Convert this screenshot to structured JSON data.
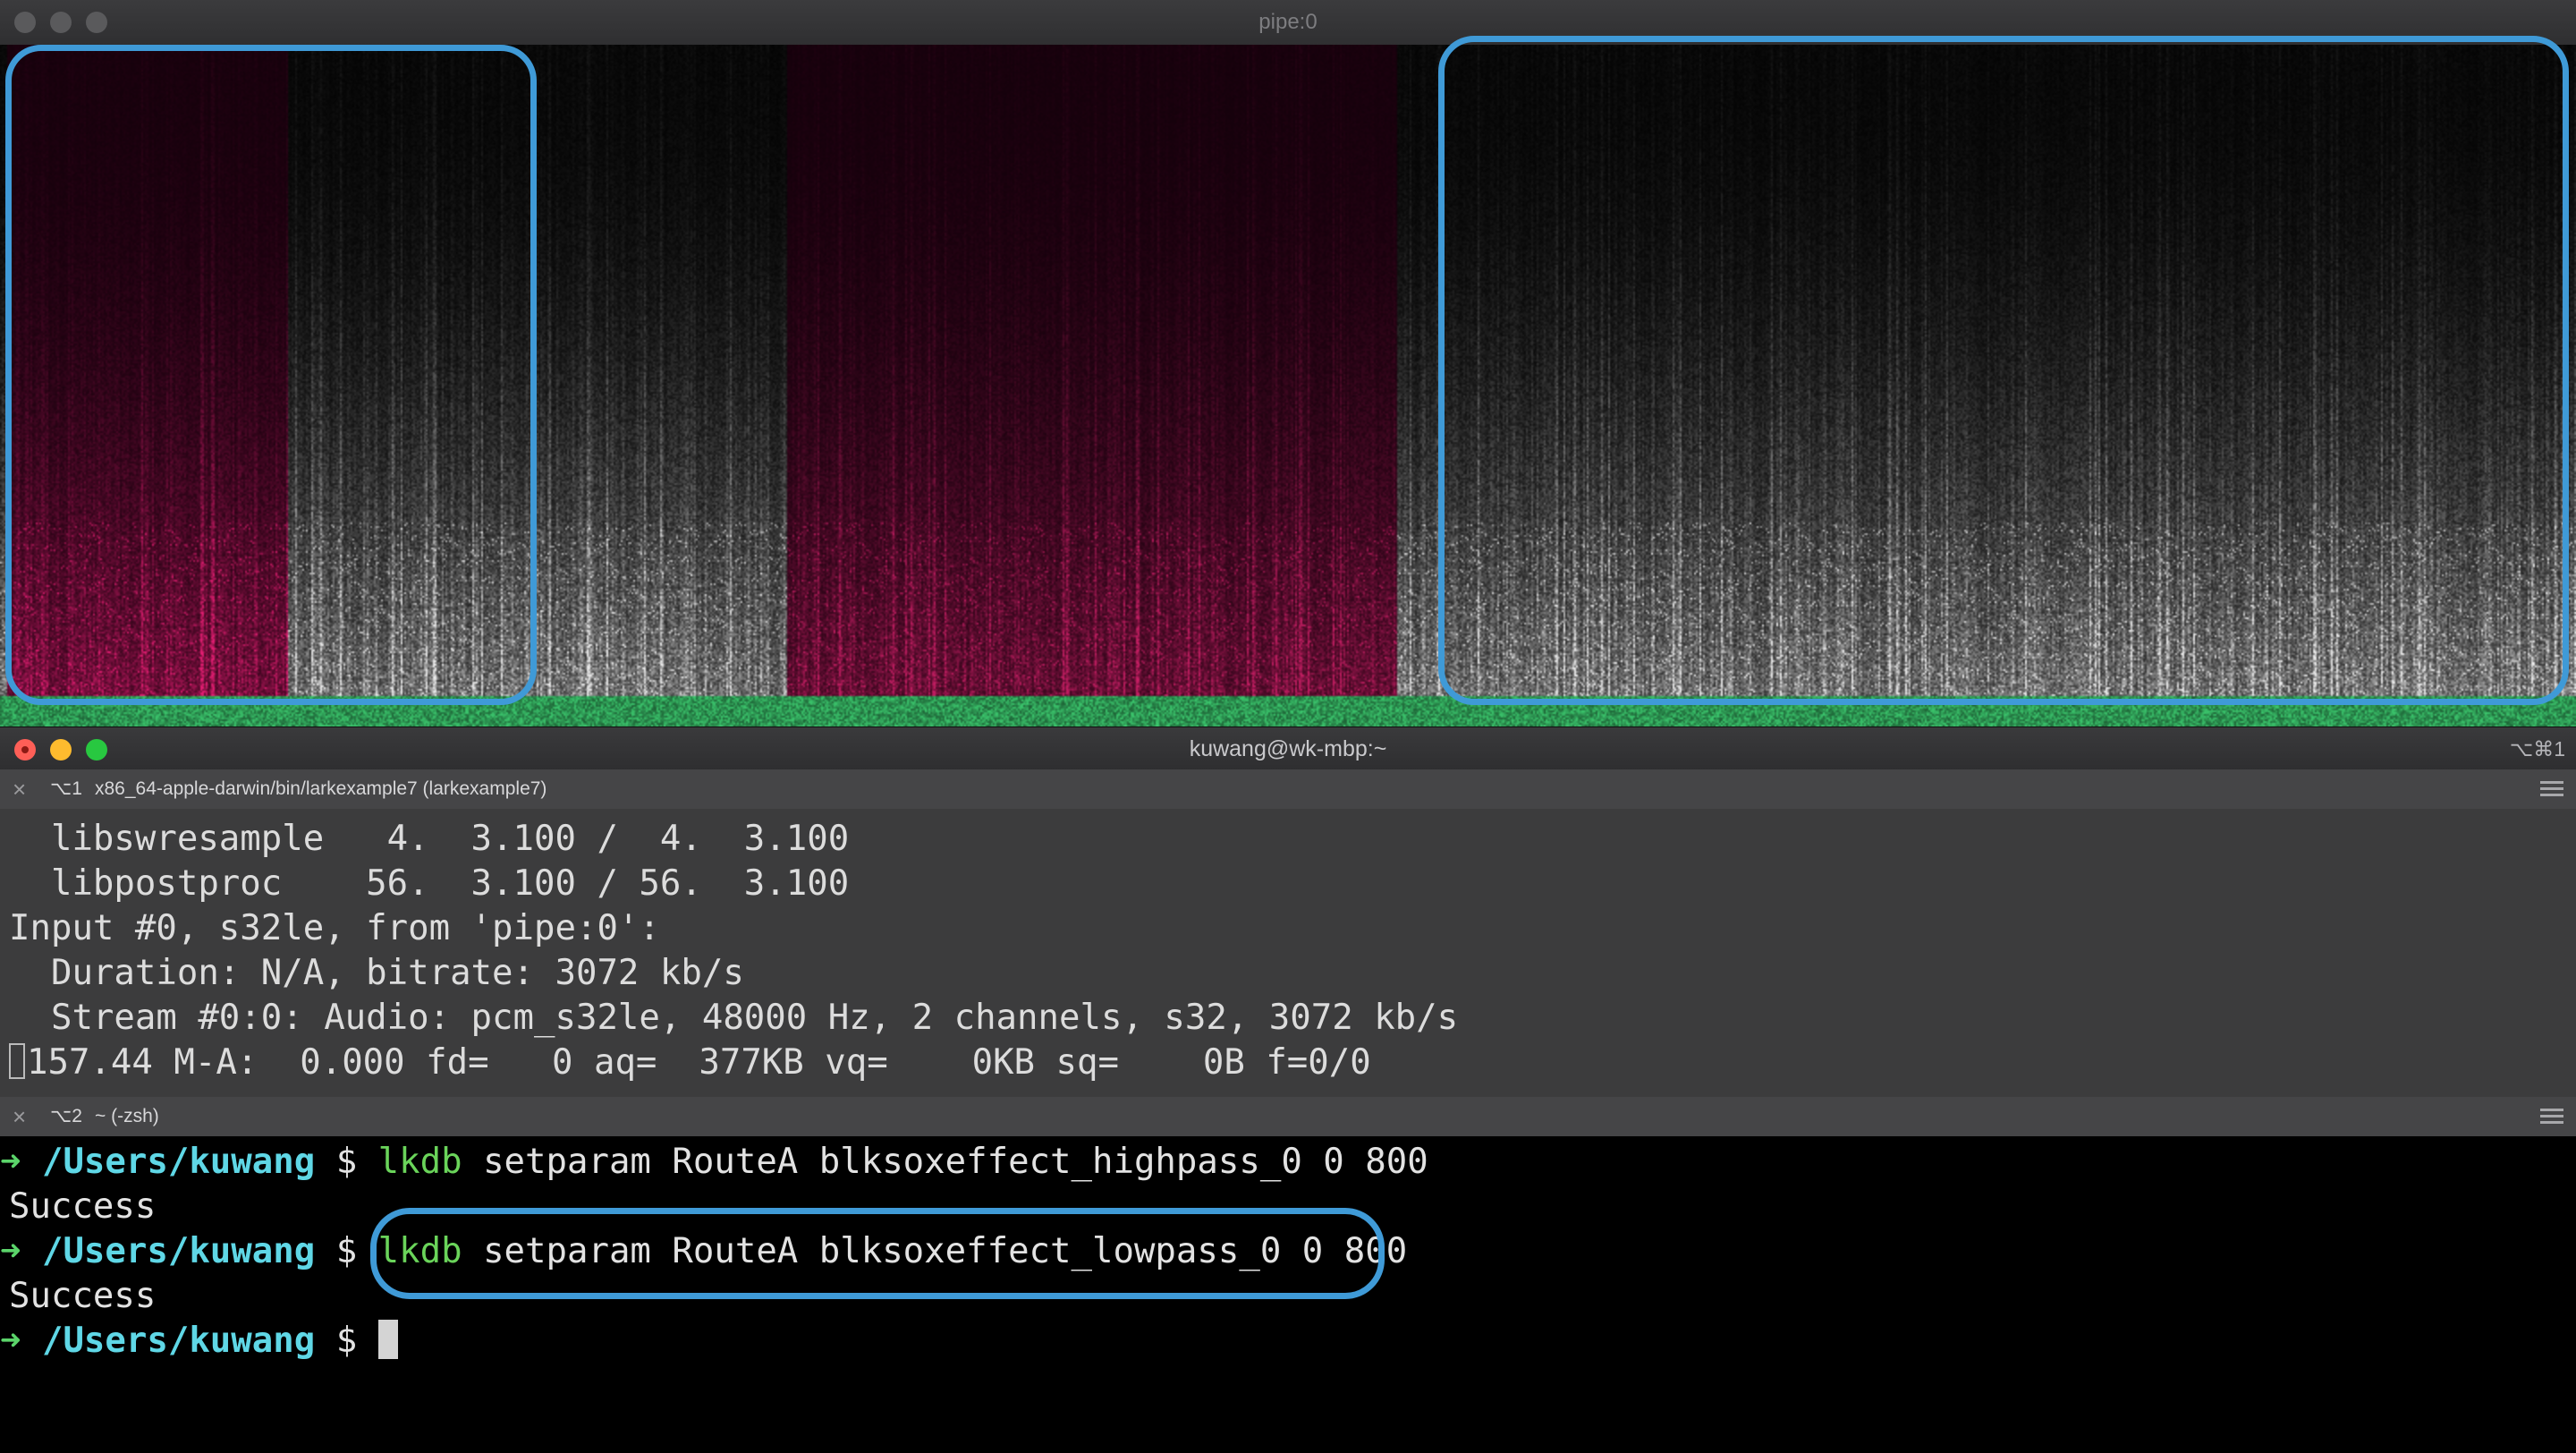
{
  "spectrogram_window": {
    "title": "pipe:0"
  },
  "terminal_window": {
    "title": "kuwang@wk-mbp:~",
    "shortcut": "⌥⌘1",
    "pane1": {
      "number": "⌥1",
      "command": "x86_64-apple-darwin/bin/larkexample7 (larkexample7)",
      "lines": [
        "  libswresample   4.  3.100 /  4.  3.100",
        "  libpostproc    56.  3.100 / 56.  3.100",
        "Input #0, s32le, from 'pipe:0':",
        "  Duration: N/A, bitrate: 3072 kb/s",
        "  Stream #0:0: Audio: pcm_s32le, 48000 Hz, 2 channels, s32, 3072 kb/s",
        "157.44 M-A:  0.000 fd=   0 aq=  377KB vq=    0KB sq=    0B f=0/0"
      ]
    },
    "pane2": {
      "number": "⌥2",
      "command": "~ (-zsh)",
      "prompt_arrow": "➜",
      "prompt_path": " /Users/kuwang",
      "prompt_dollar": " $ ",
      "cmd1_name": "lkdb",
      "cmd1_args": " setparam RouteA blksoxeffect_highpass_0 0 800",
      "result1": "Success",
      "cmd2_name": "lkdb",
      "cmd2_args": " setparam RouteA blksoxeffect_lowpass_0 0 800",
      "result2": "Success"
    }
  },
  "colors": {
    "highlight": "#3f9ad7",
    "prompt_arrow": "#5bd46a",
    "prompt_path": "#5fd7e6",
    "command": "#6ad45a",
    "spectrogram_tint": "#d6256e",
    "spectrogram_base": "#39c46b"
  }
}
